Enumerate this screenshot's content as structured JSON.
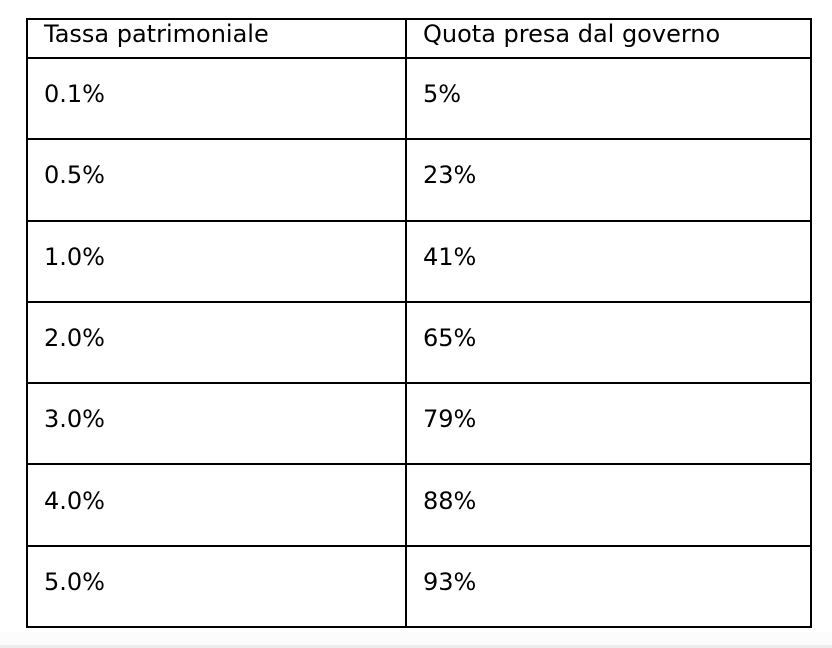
{
  "page": {
    "background_color": "#ffffff",
    "table_border_color": "#000000",
    "text_color": "#000000",
    "bottom_edge_color": "#ededed"
  },
  "table": {
    "columns": [
      "Tassa patrimoniale",
      "Quota presa dal governo"
    ],
    "rows": [
      [
        "0.1%",
        "5%"
      ],
      [
        "0.5%",
        "23%"
      ],
      [
        "1.0%",
        "41%"
      ],
      [
        "2.0%",
        "65%"
      ],
      [
        "3.0%",
        "79%"
      ],
      [
        "4.0%",
        "88%"
      ],
      [
        "5.0%",
        "93%"
      ]
    ]
  },
  "chart_data": {
    "type": "table",
    "columns": [
      "Tassa patrimoniale",
      "Quota presa dal governo"
    ],
    "rows": [
      [
        "0.1%",
        "5%"
      ],
      [
        "0.5%",
        "23%"
      ],
      [
        "1.0%",
        "41%"
      ],
      [
        "2.0%",
        "65%"
      ],
      [
        "3.0%",
        "79%"
      ],
      [
        "4.0%",
        "88%"
      ],
      [
        "5.0%",
        "93%"
      ]
    ],
    "tassa_patrimoniale_percent": [
      0.1,
      0.5,
      1.0,
      2.0,
      3.0,
      4.0,
      5.0
    ],
    "quota_presa_dal_governo_percent": [
      5,
      23,
      41,
      65,
      79,
      88,
      93
    ]
  }
}
